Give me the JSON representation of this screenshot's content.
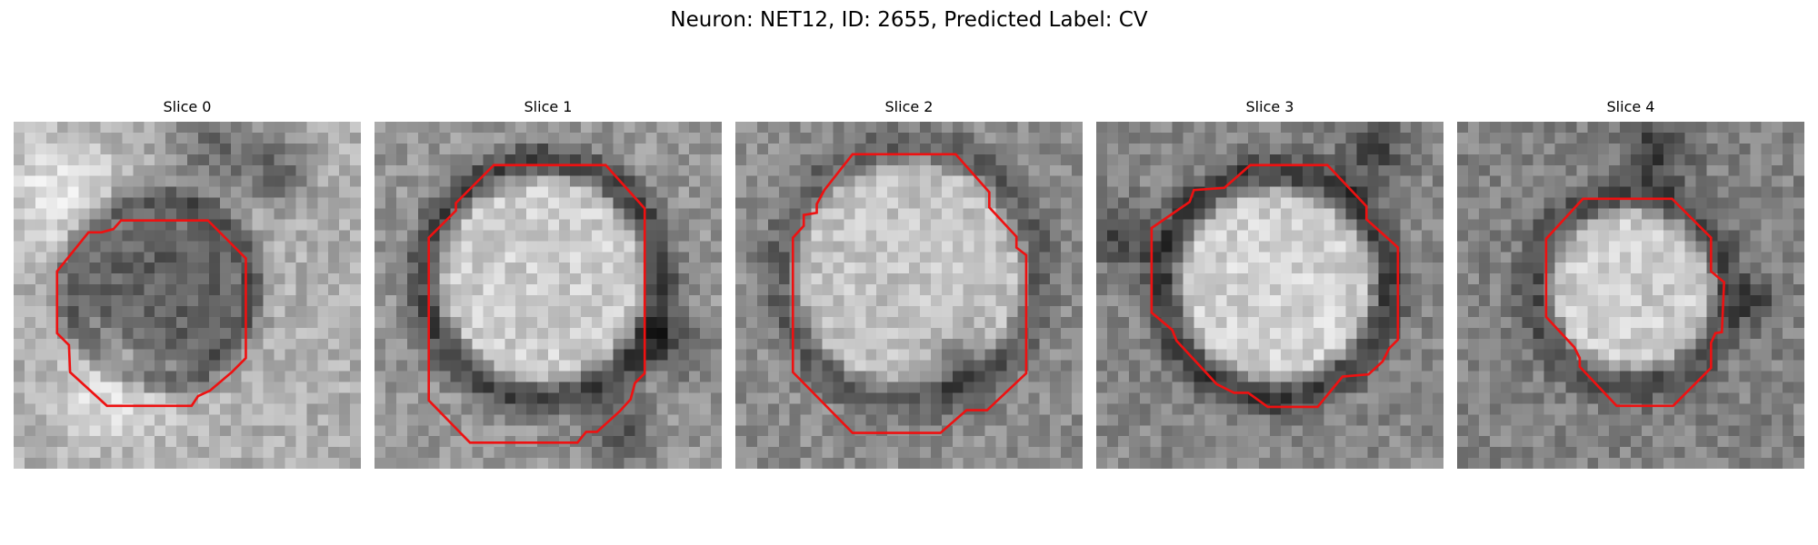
{
  "figure": {
    "title": "Neuron: NET12, ID: 2655, Predicted Label: CV"
  },
  "overlay_color": "#ee1111",
  "panels": [
    {
      "title": "Slice 0"
    },
    {
      "title": "Slice 1"
    },
    {
      "title": "Slice 2"
    },
    {
      "title": "Slice 3"
    },
    {
      "title": "Slice 4"
    }
  ]
}
